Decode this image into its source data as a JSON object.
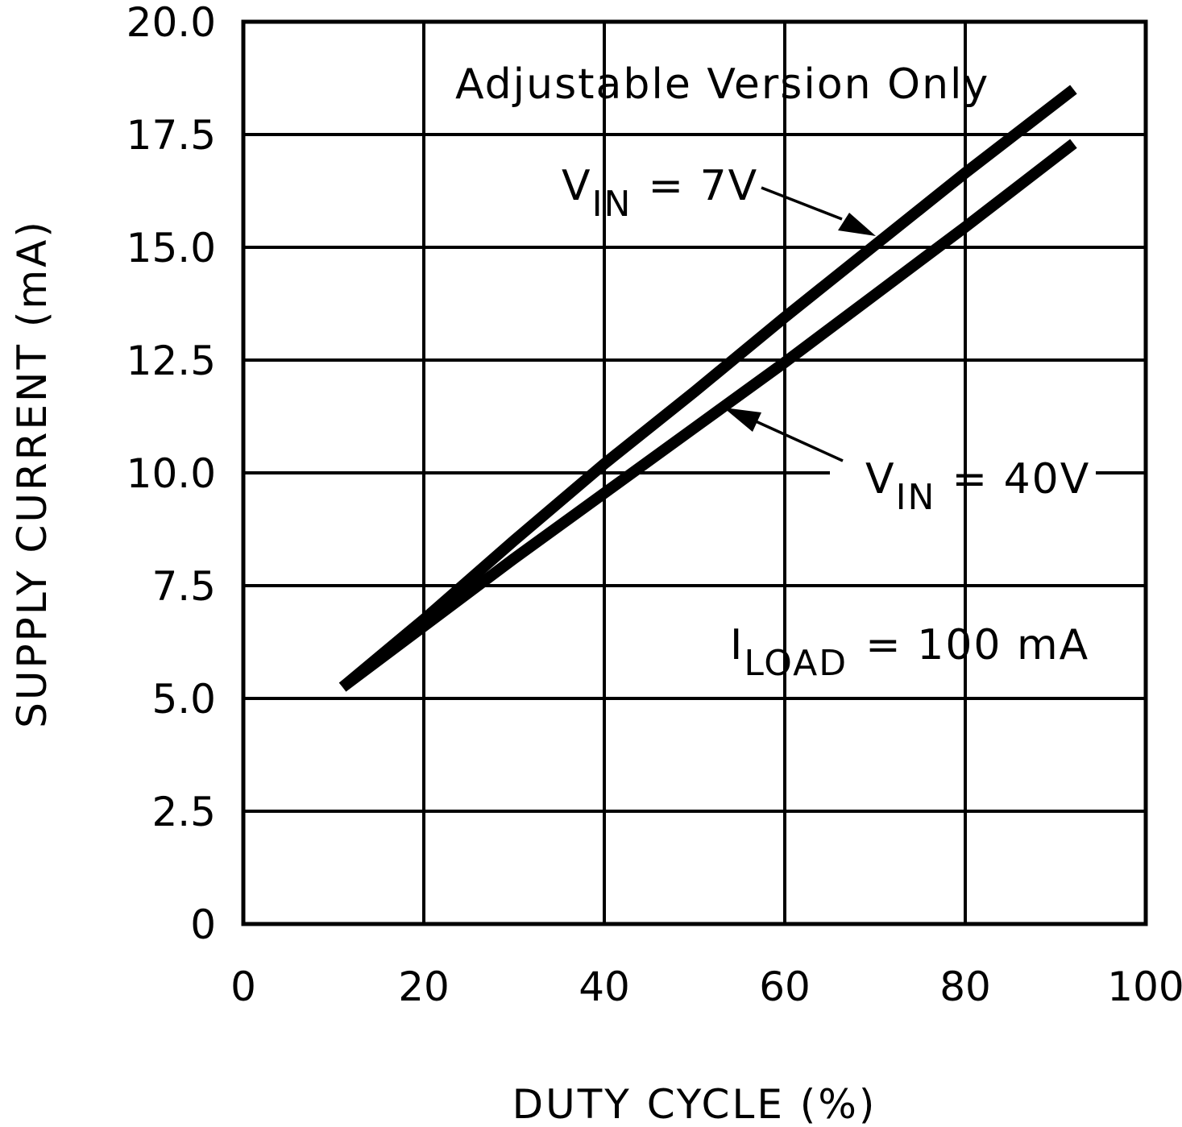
{
  "chart_data": {
    "type": "line",
    "title": "",
    "xlabel": "DUTY CYCLE (%)",
    "ylabel": "SUPPLY CURRENT (mA)",
    "xlim": [
      0,
      100
    ],
    "ylim": [
      0,
      20
    ],
    "x_ticks": [
      "0",
      "20",
      "40",
      "60",
      "80",
      "100"
    ],
    "y_ticks": [
      "0",
      "2.5",
      "5.0",
      "7.5",
      "10.0",
      "12.5",
      "15.0",
      "17.5",
      "20.0"
    ],
    "grid": true,
    "series": [
      {
        "name": "VIN = 7V",
        "x": [
          11,
          20,
          30,
          40,
          50,
          60,
          70,
          80,
          92
        ],
        "y": [
          5.25,
          6.75,
          8.5,
          10.2,
          11.8,
          13.45,
          15.05,
          16.65,
          18.5
        ]
      },
      {
        "name": "VIN = 40V",
        "x": [
          11,
          20,
          30,
          40,
          50,
          60,
          70,
          80,
          92
        ],
        "y": [
          5.25,
          6.6,
          8.1,
          9.55,
          11.0,
          12.45,
          13.95,
          15.45,
          17.3
        ]
      }
    ],
    "annotations": {
      "header": "Adjustable Version Only",
      "vin_7": {
        "main": "V",
        "sub": "IN",
        "rest": "= 7V"
      },
      "vin_40": {
        "main": "V",
        "sub": "IN",
        "rest": "= 40V"
      },
      "iload": {
        "main": "I",
        "sub": "LOAD",
        "rest": "= 100 mA"
      }
    }
  }
}
